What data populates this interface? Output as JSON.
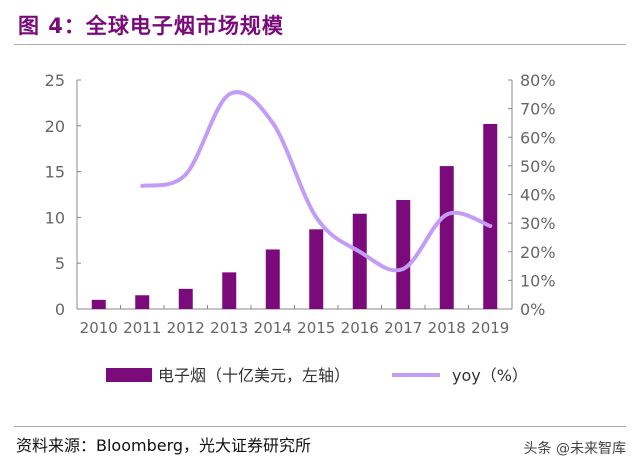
{
  "title": "图 4：全球电子烟市场规模",
  "source": "资料来源：Bloomberg，光大证券研究所",
  "watermark": "头条 @未来智库",
  "chart_data": {
    "type": "bar+line",
    "categories": [
      "2010",
      "2011",
      "2012",
      "2013",
      "2014",
      "2015",
      "2016",
      "2017",
      "2018",
      "2019"
    ],
    "series": [
      {
        "name": "电子烟（十亿美元，左轴）",
        "type": "bar",
        "axis": "left",
        "color": "#7b0a7b",
        "values": [
          1.0,
          1.5,
          2.2,
          4.0,
          6.5,
          8.7,
          10.4,
          11.9,
          15.6,
          20.2
        ]
      },
      {
        "name": "yoy（%）",
        "type": "line",
        "axis": "right",
        "color": "#c39cf5",
        "values": [
          null,
          43,
          47,
          75,
          65,
          32,
          20,
          14,
          33,
          29
        ]
      }
    ],
    "left_axis": {
      "ylim": [
        0,
        25
      ],
      "ticks": [
        "0",
        "5",
        "10",
        "15",
        "20",
        "25"
      ]
    },
    "right_axis": {
      "ylim": [
        0,
        80
      ],
      "ticks": [
        "0%",
        "10%",
        "20%",
        "30%",
        "40%",
        "50%",
        "60%",
        "70%",
        "80%"
      ]
    },
    "legend": "bottom",
    "grid": false
  }
}
